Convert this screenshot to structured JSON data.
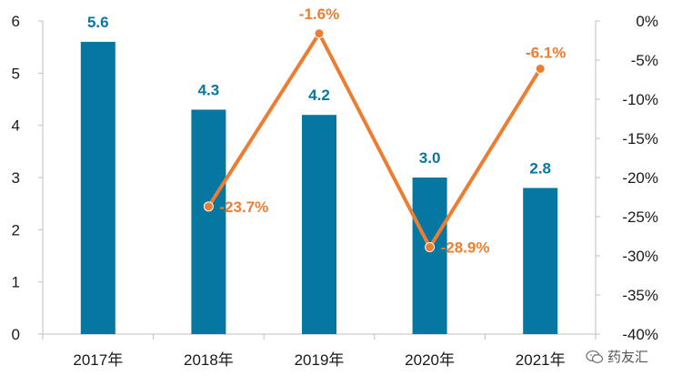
{
  "chart_data": {
    "type": "bar",
    "categories": [
      "2017年",
      "2018年",
      "2019年",
      "2020年",
      "2021年"
    ],
    "series": [
      {
        "type": "bar",
        "axis": "left",
        "values": [
          5.6,
          4.3,
          4.2,
          3.0,
          2.8
        ],
        "data_labels": [
          "5.6",
          "4.3",
          "4.2",
          "3.0",
          "2.8"
        ]
      },
      {
        "type": "line",
        "axis": "right",
        "values": [
          null,
          -23.7,
          -1.6,
          -28.9,
          -6.1
        ],
        "data_labels": [
          "",
          "-23.7%",
          "-1.6%",
          "-28.9%",
          "-6.1%"
        ]
      }
    ],
    "left_axis": {
      "ylim": [
        0,
        6
      ],
      "ticks": [
        "0",
        "1",
        "2",
        "3",
        "4",
        "5",
        "6"
      ]
    },
    "right_axis": {
      "ylim": [
        -40,
        0
      ],
      "ticks": [
        "0%",
        "-5%",
        "-10%",
        "-15%",
        "-20%",
        "-25%",
        "-30%",
        "-35%",
        "-40%"
      ]
    },
    "grid": false,
    "colors": {
      "bar": "#0677a1",
      "line": "#ed7d31",
      "bar_label": "#0677a1",
      "line_label": "#ed7d31"
    }
  },
  "watermark": {
    "text": "药友汇",
    "icon": "wechat-icon"
  }
}
